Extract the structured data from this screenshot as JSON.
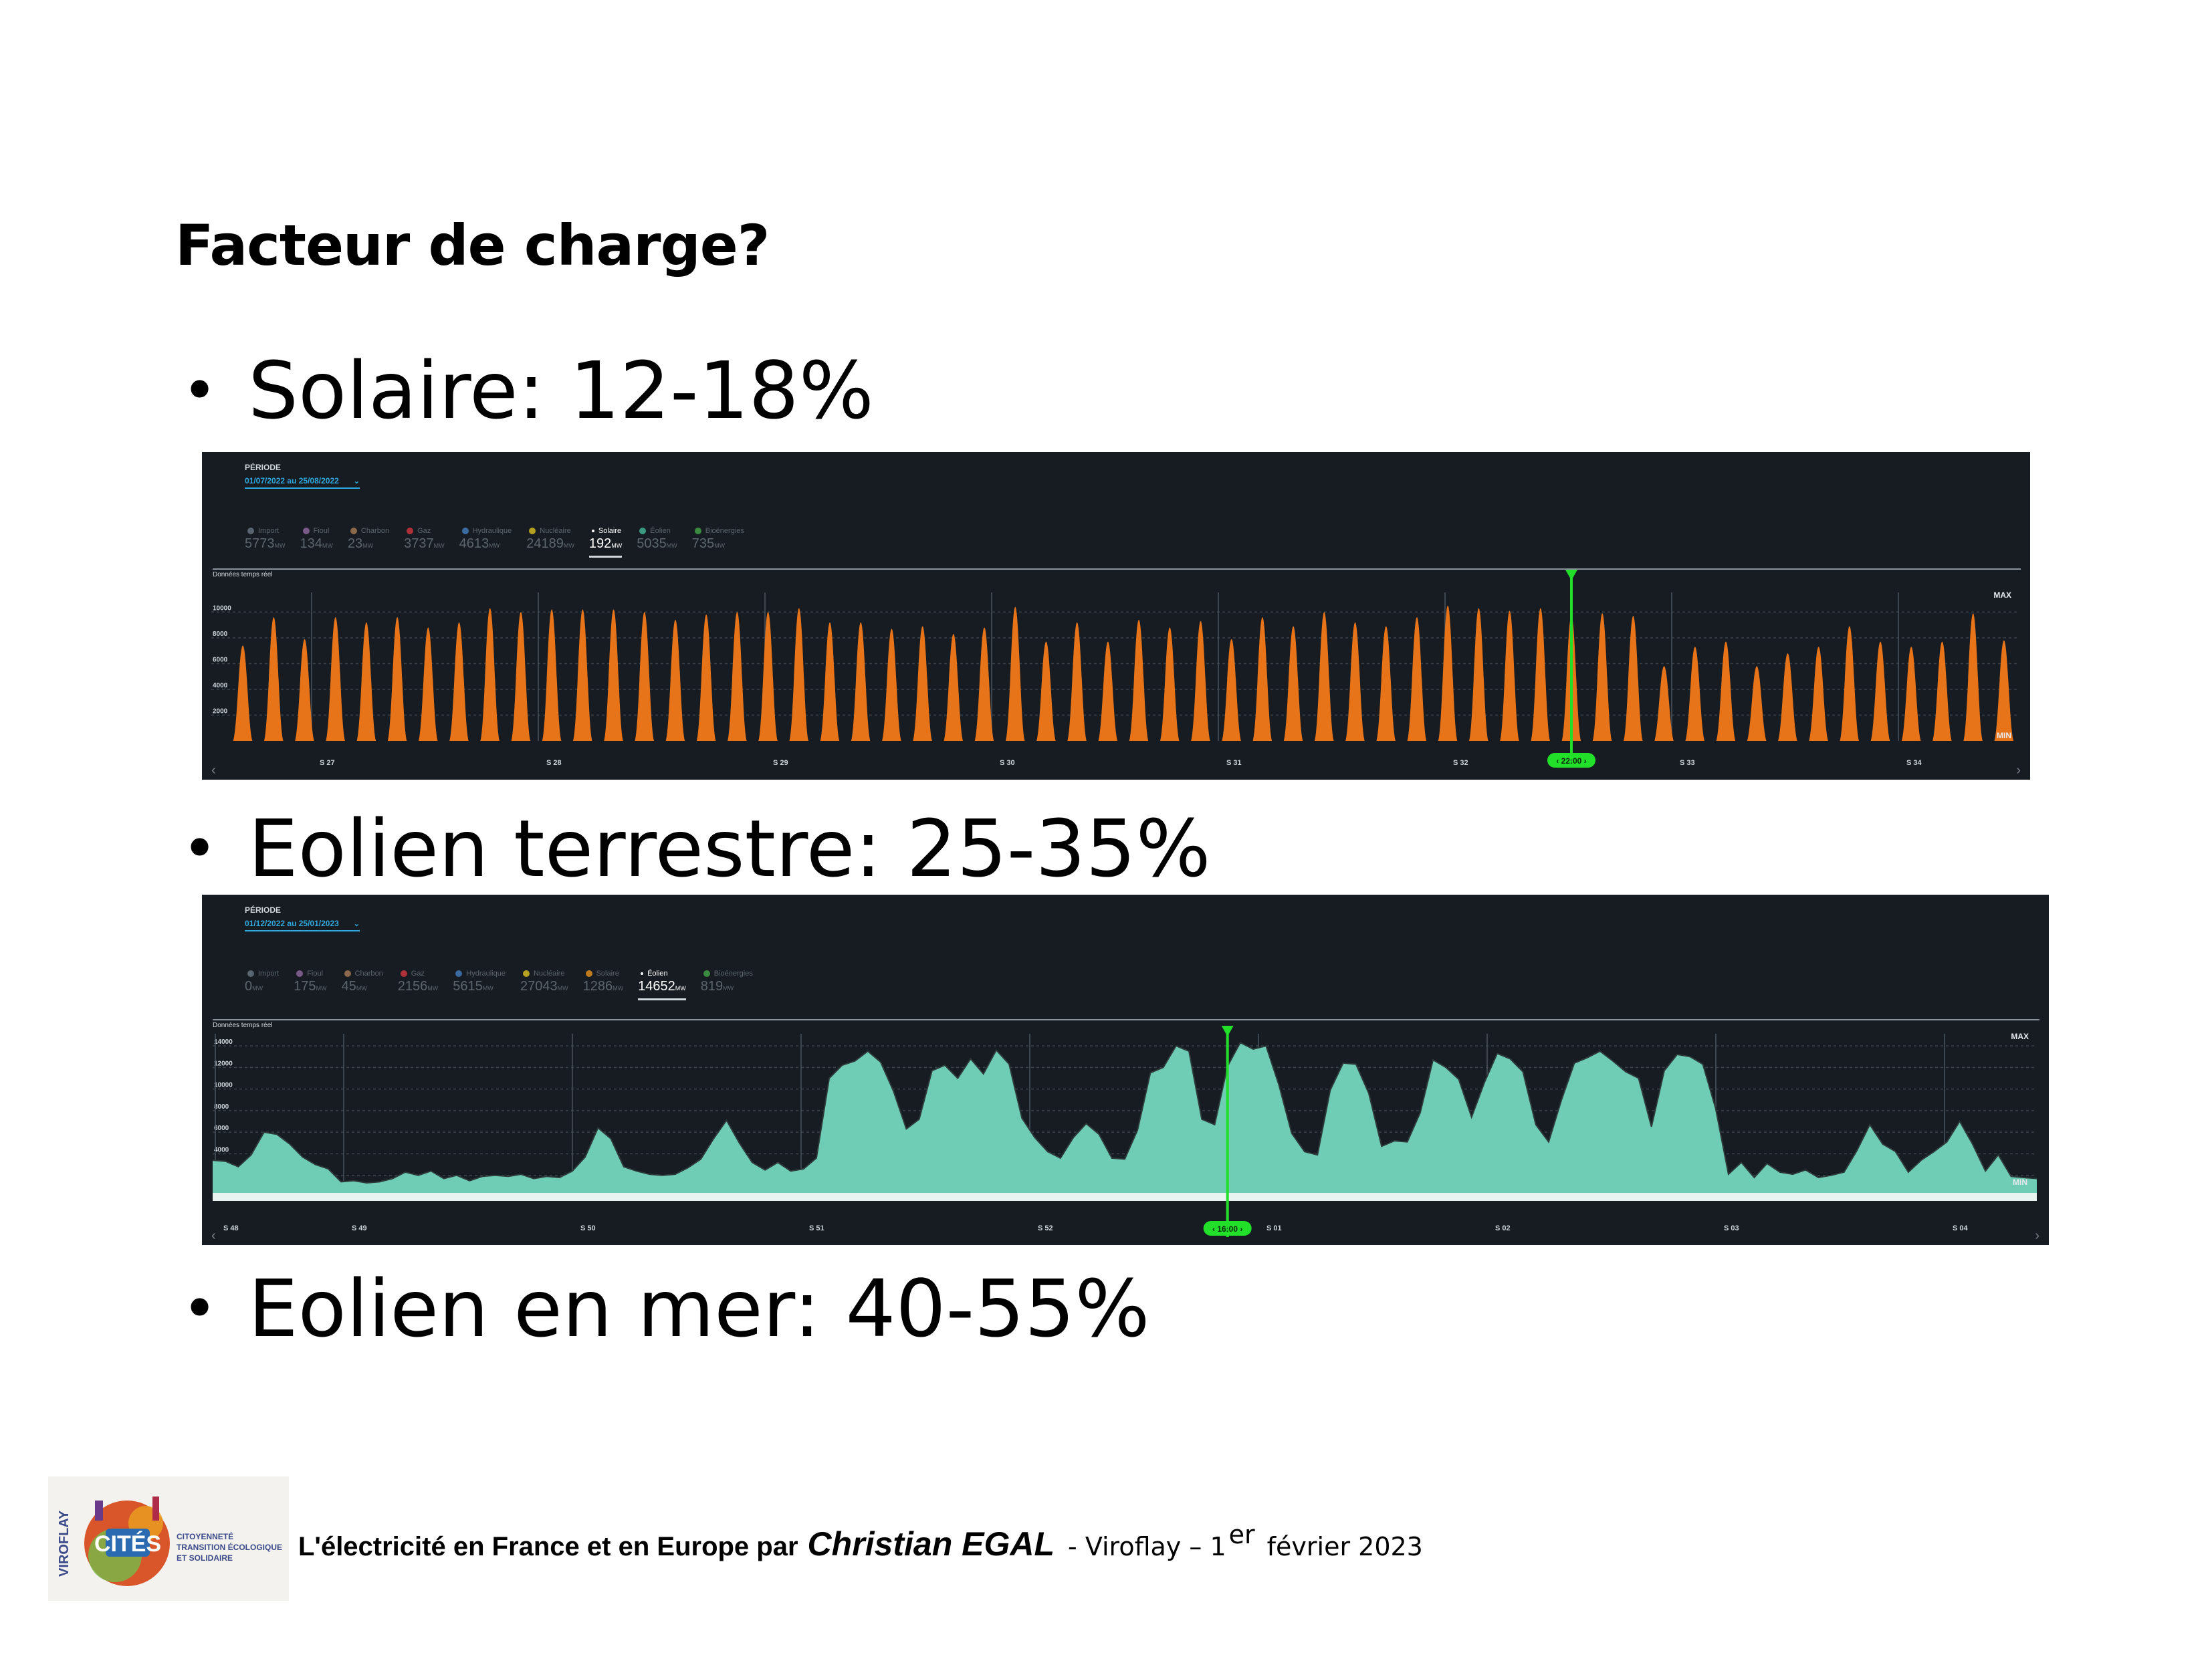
{
  "title": "Facteur de charge?",
  "bullets": {
    "solar": "Solaire: 12-18%",
    "onshore": "Eolien terrestre: 25-35%",
    "offshore": "Eolien en mer: 40-55%"
  },
  "colors": {
    "solar": "#e8741a",
    "wind": "#6fcdb5",
    "cursor": "#22e02a",
    "panel_bg": "#161c22",
    "accent": "#2fa9e0"
  },
  "solar_panel": {
    "periode_label": "PÉRIODE",
    "date_range": "01/07/2022 au 25/08/2022",
    "filters": [
      {
        "name": "Import",
        "value": "5773",
        "unit": "MW",
        "color": "#5a6470",
        "active": false
      },
      {
        "name": "Fioul",
        "value": "134",
        "unit": "MW",
        "color": "#7a5a8a",
        "active": false
      },
      {
        "name": "Charbon",
        "value": "23",
        "unit": "MW",
        "color": "#8a6a4a",
        "active": false
      },
      {
        "name": "Gaz",
        "value": "3737",
        "unit": "MW",
        "color": "#b0303a",
        "active": false
      },
      {
        "name": "Hydraulique",
        "value": "4613",
        "unit": "MW",
        "color": "#3a6aa0",
        "active": false
      },
      {
        "name": "Nucléaire",
        "value": "24189",
        "unit": "MW",
        "color": "#b5a020",
        "active": false
      },
      {
        "name": "Solaire",
        "value": "192",
        "unit": "MW",
        "color": "#e8741a",
        "active": true
      },
      {
        "name": "Éolien",
        "value": "5035",
        "unit": "MW",
        "color": "#3a9a80",
        "active": false
      },
      {
        "name": "Bioénergies",
        "value": "735",
        "unit": "MW",
        "color": "#3a8a40",
        "active": false
      }
    ],
    "realtime_label": "Données temps réel",
    "max_label": "MAX",
    "min_label": "MIN",
    "cursor_label": "22:00",
    "nav_prev": "‹",
    "nav_next": "›"
  },
  "wind_panel": {
    "periode_label": "PÉRIODE",
    "date_range": "01/12/2022 au 25/01/2023",
    "filters": [
      {
        "name": "Import",
        "value": "0",
        "unit": "MW",
        "color": "#5a6470",
        "active": false
      },
      {
        "name": "Fioul",
        "value": "175",
        "unit": "MW",
        "color": "#7a5a8a",
        "active": false
      },
      {
        "name": "Charbon",
        "value": "45",
        "unit": "MW",
        "color": "#8a6a4a",
        "active": false
      },
      {
        "name": "Gaz",
        "value": "2156",
        "unit": "MW",
        "color": "#b0303a",
        "active": false
      },
      {
        "name": "Hydraulique",
        "value": "5615",
        "unit": "MW",
        "color": "#3a6aa0",
        "active": false
      },
      {
        "name": "Nucléaire",
        "value": "27043",
        "unit": "MW",
        "color": "#b5a020",
        "active": false
      },
      {
        "name": "Solaire",
        "value": "1286",
        "unit": "MW",
        "color": "#c07a20",
        "active": false
      },
      {
        "name": "Éolien",
        "value": "14652",
        "unit": "MW",
        "color": "#6fcdb5",
        "active": true
      },
      {
        "name": "Bioénergies",
        "value": "819",
        "unit": "MW",
        "color": "#3a8a40",
        "active": false
      }
    ],
    "realtime_label": "Données temps réel",
    "max_label": "MAX",
    "min_label": "MIN",
    "cursor_label": "16:00",
    "nav_prev": "‹",
    "nav_next": "›"
  },
  "chart_data": [
    {
      "type": "area",
      "ylabel": "MW",
      "ylim": [
        0,
        11000
      ],
      "yticks": [
        2000,
        4000,
        6000,
        8000,
        10000
      ],
      "week_labels": [
        "S 27",
        "S 28",
        "S 29",
        "S 30",
        "S 31",
        "S 32",
        "S 33",
        "S 34"
      ],
      "series": [
        {
          "daily_peaks": [
            7400,
            9600,
            7900,
            9600,
            9200,
            9600,
            8800,
            9200,
            10300,
            10000,
            10200,
            10200,
            10200,
            10000,
            9400,
            9800,
            10000,
            10000,
            10300,
            9200,
            9200,
            8700,
            8900,
            8300,
            8800,
            10400,
            7700,
            9200,
            7700,
            9400,
            8800,
            9300,
            7900,
            9600,
            8900,
            10000,
            9200,
            8900,
            9600,
            10500,
            10300,
            10100,
            10300,
            9700,
            9900,
            9700,
            5800,
            7300,
            7700,
            5800,
            6800,
            7300,
            8900,
            7700,
            7300,
            7700,
            9900,
            7800
          ]
        }
      ],
      "cursor_day": 43,
      "grid": true
    },
    {
      "type": "area",
      "ylabel": "MW",
      "ylim": [
        0,
        14500
      ],
      "yticks": [
        0,
        2000,
        4000,
        6000,
        8000,
        10000,
        12000,
        14000
      ],
      "week_labels": [
        "S 48",
        "S 49",
        "S 50",
        "S 51",
        "S 52",
        "S 01",
        "S 02",
        "S 03",
        "S 04"
      ],
      "series": [
        {
          "values": [
            3400,
            3300,
            2800,
            3900,
            6000,
            5800,
            4900,
            3700,
            3000,
            2600,
            1400,
            1500,
            1300,
            1400,
            1700,
            2300,
            2000,
            2400,
            1700,
            2000,
            1500,
            1900,
            2000,
            1900,
            2100,
            1700,
            1900,
            1800,
            2400,
            3700,
            6400,
            5400,
            2800,
            2400,
            2100,
            2000,
            2100,
            2700,
            3500,
            5400,
            7100,
            5000,
            3200,
            2500,
            3200,
            2400,
            2600,
            3600,
            11000,
            12200,
            12600,
            13500,
            12500,
            9800,
            6300,
            7200,
            11700,
            12200,
            11000,
            12800,
            11400,
            13600,
            12300,
            7300,
            5500,
            4200,
            3600,
            5500,
            6800,
            5800,
            3600,
            3500,
            6200,
            11500,
            12000,
            14000,
            13500,
            7200,
            6700,
            12100,
            14300,
            13700,
            14000,
            10400,
            5900,
            4200,
            3900,
            9900,
            12400,
            12300,
            9600,
            4700,
            5200,
            5100,
            7800,
            12700,
            12000,
            10900,
            7400,
            10600,
            13300,
            12800,
            11600,
            6700,
            5100,
            9000,
            12400,
            12900,
            13500,
            12600,
            11600,
            11000,
            6500,
            11700,
            13200,
            13000,
            12300,
            8200,
            2100,
            3200,
            1800,
            3100,
            2300,
            2100,
            2500,
            1800,
            2000,
            2300,
            4300,
            6700,
            4900,
            4200,
            2300,
            3400,
            4200,
            5100,
            7000,
            4900,
            2400,
            3900,
            1900,
            1800,
            1700
          ]
        }
      ],
      "cursor_index": 79,
      "grid": true
    }
  ],
  "footer": {
    "logo_text": "CITÉS",
    "logo_side": "VIROFLAY",
    "logo_sub": [
      "CITOYENNETÉ",
      "TRANSITION ÉCOLOGIQUE",
      "ET SOLIDAIRE"
    ],
    "text_bold": "L'électricité en France et en Europe par",
    "author": "Christian EGAL",
    "place_date_pre": "- Viroflay – 1",
    "sup": "er",
    "place_date_post": "février 2023"
  }
}
